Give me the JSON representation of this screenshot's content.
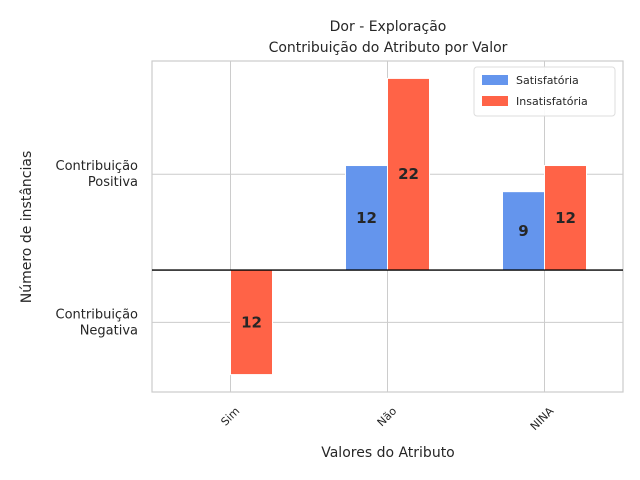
{
  "chart_data": {
    "type": "bar",
    "title": "Dor - Exploração",
    "subtitle": "Contribuição do Atributo por Valor",
    "xlabel": "Valores do Atributo",
    "ylabel": "Número de instâncias",
    "categories": [
      "Sim",
      "Não",
      "NINA"
    ],
    "series": [
      {
        "name": "Satisfatória",
        "color": "#6495ED",
        "values": [
          0,
          12,
          9
        ]
      },
      {
        "name": "Insatisfatória",
        "color": "#FF6347",
        "values": [
          -12,
          22,
          12
        ]
      }
    ],
    "data_labels": [
      [
        null,
        "12",
        "9"
      ],
      [
        "12",
        "22",
        "12"
      ]
    ],
    "y_tick_labels": [
      {
        "value": 11,
        "text": [
          "Contribuição",
          "Positiva"
        ]
      },
      {
        "value": -6,
        "text": [
          "Contribuição",
          "Negativa"
        ]
      }
    ],
    "ylim": [
      -14,
      24
    ],
    "grid": true,
    "zero_line": true,
    "legend_position": "top-right"
  }
}
